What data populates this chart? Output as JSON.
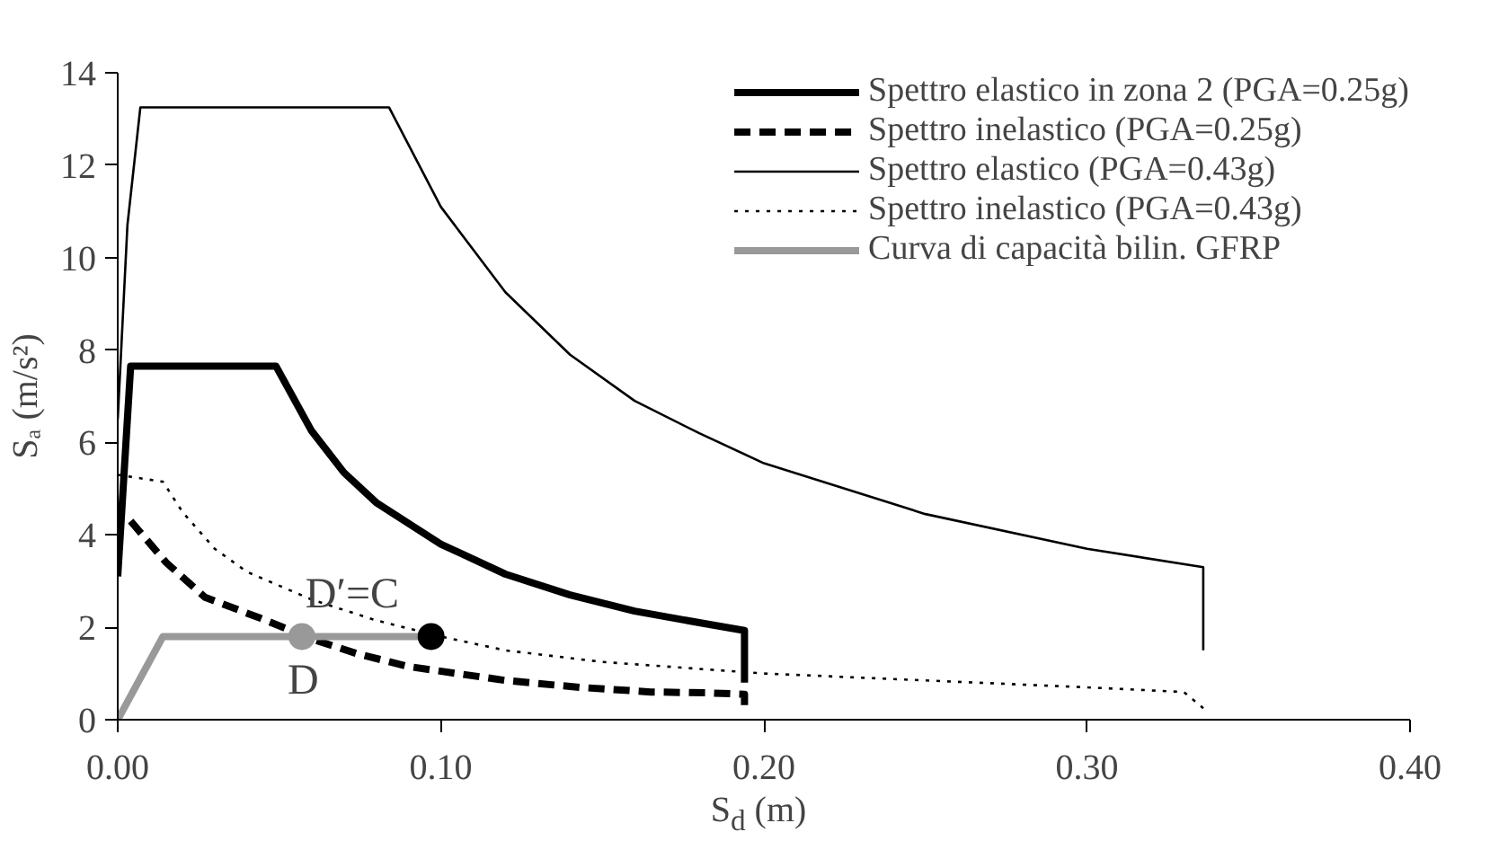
{
  "chart_data": {
    "type": "line",
    "xlabel": "S$_{d}$ (m)",
    "ylabel": "Sₐ (m/s²)",
    "xlim": [
      0,
      0.4
    ],
    "ylim": [
      0,
      14
    ],
    "xticks": [
      {
        "value": 0,
        "label": "0.00"
      },
      {
        "value": 0.1,
        "label": "0.10"
      },
      {
        "value": 0.2,
        "label": "0.20"
      },
      {
        "value": 0.3,
        "label": "0.30"
      },
      {
        "value": 0.4,
        "label": "0.40"
      }
    ],
    "yticks": [
      0,
      2,
      4,
      6,
      8,
      10,
      12,
      14
    ],
    "grid": false,
    "legend": "top right",
    "marker": "none",
    "series": [
      {
        "name": "Spettro elastico in zona 2 (PGA=0.25g)",
        "color": "#000000",
        "line_style": "solid",
        "x": [
          0,
          0.004,
          0.049,
          0.06,
          0.07,
          0.08,
          0.1,
          0.12,
          0.14,
          0.16,
          0.18,
          0.194,
          0.194
        ],
        "values": [
          3.1,
          7.65,
          7.65,
          6.25,
          5.35,
          4.7,
          3.8,
          3.15,
          2.7,
          2.35,
          2.1,
          1.93,
          0.8
        ]
      },
      {
        "name": "Spettro inelastico (PGA=0.25g)",
        "color": "#000000",
        "line_style": "dashed",
        "x": [
          0.004,
          0.015,
          0.027,
          0.044,
          0.06,
          0.074,
          0.09,
          0.12,
          0.143,
          0.165,
          0.183,
          0.194,
          0.194
        ],
        "values": [
          4.3,
          3.4,
          2.65,
          2.2,
          1.75,
          1.43,
          1.15,
          0.85,
          0.7,
          0.6,
          0.58,
          0.55,
          0.3
        ]
      },
      {
        "name": "Spettro elastico (PGA=0.43g)",
        "color": "#000000",
        "line_style": "solid",
        "x": [
          0,
          0.003,
          0.007,
          0.084,
          0.1,
          0.12,
          0.14,
          0.16,
          0.18,
          0.2,
          0.25,
          0.3,
          0.336,
          0.336
        ],
        "values": [
          6.5,
          10.7,
          13.25,
          13.25,
          11.1,
          9.25,
          7.9,
          6.9,
          6.2,
          5.55,
          4.45,
          3.7,
          3.3,
          1.5
        ]
      },
      {
        "name": "Spettro inelastico (PGA=0.43g)",
        "color": "#000000",
        "line_style": "dotted",
        "x": [
          0,
          0.014,
          0.02,
          0.03,
          0.04,
          0.06,
          0.08,
          0.1,
          0.12,
          0.15,
          0.2,
          0.25,
          0.3,
          0.33,
          0.336
        ],
        "values": [
          5.3,
          5.15,
          4.5,
          3.7,
          3.2,
          2.6,
          2.15,
          1.8,
          1.5,
          1.25,
          1.0,
          0.85,
          0.7,
          0.6,
          0.25
        ]
      },
      {
        "name": "Curva di capacità bilin. GFRP",
        "color": "#999999",
        "line_style": "solid",
        "x": [
          0,
          0.014,
          0.095
        ],
        "values": [
          0,
          1.8,
          1.8
        ]
      },
      {
        "type": "scatter",
        "marker": "circle",
        "color": "#999999",
        "x": [
          0.057
        ],
        "values": [
          1.8
        ]
      },
      {
        "type": "scatter",
        "marker": "circle",
        "color": "#000000",
        "x": [
          0.097
        ],
        "values": [
          1.8
        ]
      }
    ],
    "annotations": [
      {
        "text": "D",
        "x": 0.057,
        "y": 1.8
      },
      {
        "text": "D′=C",
        "x": 0.097,
        "y": 1.8
      }
    ]
  }
}
